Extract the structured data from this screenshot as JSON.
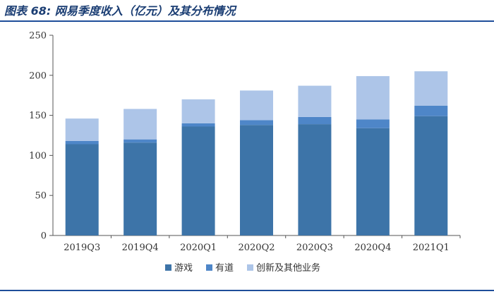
{
  "title": "图表 68: 网易季度收入（亿元）及其分布情况",
  "chart_data": {
    "type": "bar",
    "stacked": true,
    "categories": [
      "2019Q3",
      "2019Q4",
      "2020Q1",
      "2020Q2",
      "2020Q3",
      "2020Q4",
      "2021Q1"
    ],
    "series": [
      {
        "name": "游戏",
        "color": "#3d74a8",
        "values": [
          114,
          116,
          136,
          138,
          139,
          134,
          149
        ]
      },
      {
        "name": "有道",
        "color": "#4e86c8",
        "values": [
          4,
          4,
          4,
          6,
          9,
          11,
          13
        ]
      },
      {
        "name": "创新及其他业务",
        "color": "#adc5e8",
        "values": [
          28,
          38,
          30,
          37,
          39,
          54,
          43
        ]
      }
    ],
    "ylim": [
      0,
      250
    ],
    "yticks": [
      0,
      50,
      100,
      150,
      200,
      250
    ],
    "xlabel": "",
    "ylabel": "",
    "grid": false,
    "legend_position": "bottom"
  }
}
